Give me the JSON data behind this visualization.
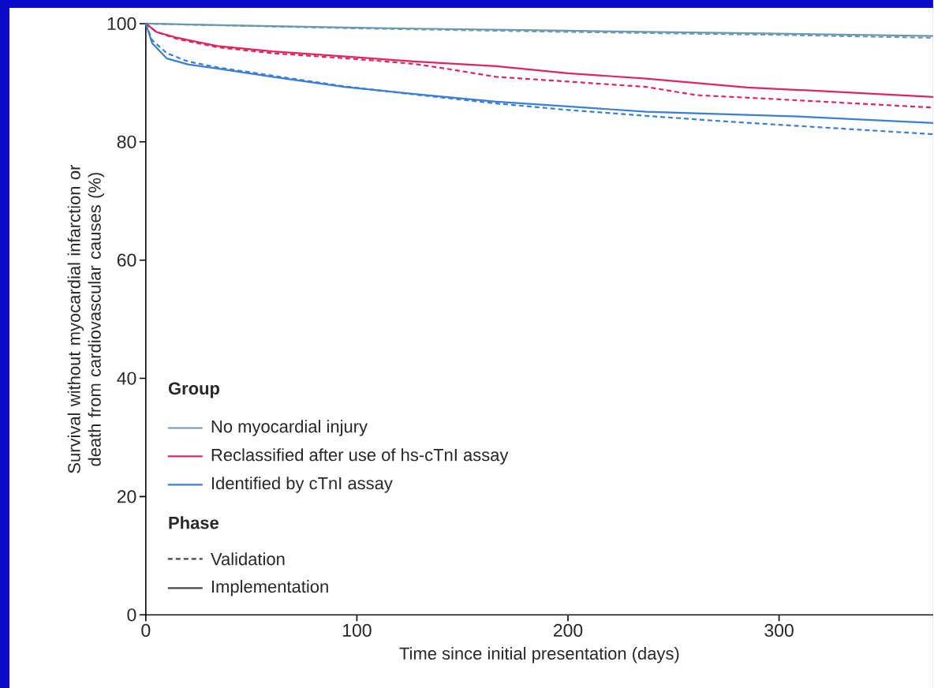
{
  "chart_data": {
    "type": "line",
    "xlabel": "Time since initial presentation (days)",
    "ylabel": "Survival without myocardial infarction or death from cardiovascular causes (%)",
    "xlim": [
      0,
      373
    ],
    "xticks": [
      0,
      100,
      200,
      300
    ],
    "ylim": [
      0,
      100
    ],
    "yticks": [
      0,
      20,
      40,
      60,
      80,
      100
    ],
    "legend": "bottom left",
    "legend_title": "Group",
    "annotations": [
      "Phase",
      "Validation",
      "Implementation"
    ],
    "series": [
      {
        "color": "#6a9ab0",
        "line_style": "dashed",
        "x": [
          0,
          100,
          200,
          300,
          373
        ],
        "values": [
          100,
          99.2,
          98.6,
          98.1,
          97.6
        ]
      },
      {
        "name": "No myocardial injury",
        "color": "#6a9ab0",
        "line_style": "solid",
        "x": [
          0,
          100,
          200,
          300,
          373
        ],
        "values": [
          100,
          99.3,
          98.8,
          98.3,
          97.9
        ]
      },
      {
        "color": "#e0245e",
        "line_style": "dashed",
        "x": [
          0,
          5,
          15,
          34,
          60,
          100,
          127,
          142,
          166,
          200,
          237,
          261,
          300,
          373
        ],
        "values": [
          100,
          98.6,
          97.4,
          96.0,
          95.0,
          94.0,
          93.2,
          92.4,
          91.0,
          90.2,
          89.3,
          87.9,
          87.2,
          85.8
        ]
      },
      {
        "name": "Reclassified after use of hs-cTnI assay",
        "color": "#e0245e",
        "line_style": "solid",
        "x": [
          0,
          5,
          15,
          34,
          60,
          100,
          127,
          166,
          200,
          237,
          285,
          320,
          373
        ],
        "values": [
          100,
          98.6,
          97.6,
          96.2,
          95.3,
          94.3,
          93.6,
          92.8,
          91.6,
          90.7,
          89.2,
          88.6,
          87.6
        ]
      },
      {
        "color": "#3a7fd5",
        "line_style": "dashed",
        "x": [
          0,
          3,
          10,
          20,
          34,
          60,
          94,
          130,
          166,
          200,
          237,
          273,
          309,
          373
        ],
        "values": [
          100,
          97.2,
          95.0,
          93.6,
          92.6,
          91.2,
          89.4,
          87.9,
          86.5,
          85.4,
          84.4,
          83.5,
          82.7,
          81.3
        ]
      },
      {
        "name": "Identified by cTnI assay",
        "color": "#3a7fd5",
        "line_style": "solid",
        "x": [
          0,
          3,
          10,
          20,
          34,
          60,
          94,
          130,
          166,
          200,
          237,
          273,
          309,
          373
        ],
        "values": [
          100,
          96.7,
          94.1,
          93.1,
          92.4,
          91.0,
          89.3,
          88.0,
          86.8,
          86.0,
          85.1,
          84.7,
          84.3,
          83.2
        ]
      }
    ]
  }
}
